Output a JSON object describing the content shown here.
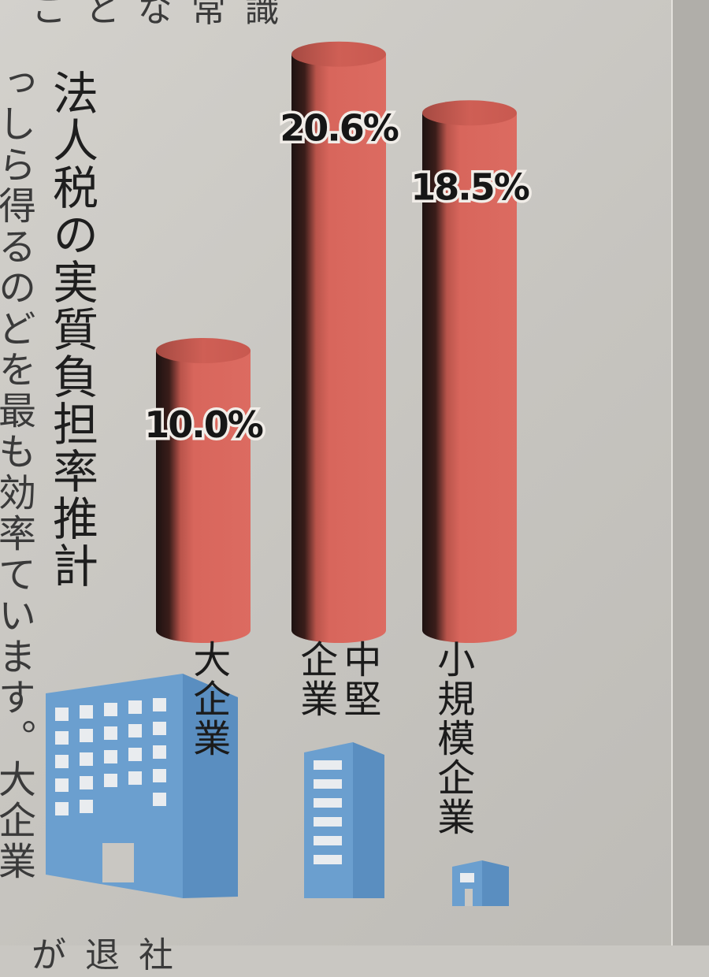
{
  "article": {
    "top_fragment": "ことな常識",
    "left_column": "っしら得るのどを最も効率ています。大企業は、こ",
    "bottom_fragment": "が退社"
  },
  "chart_data": {
    "type": "bar",
    "title": "法人税の実質負担率推計",
    "categories": [
      "大企業",
      "中堅企業",
      "小規模企業"
    ],
    "values": [
      10.0,
      20.6,
      18.5
    ],
    "value_labels": [
      "10.0%",
      "20.6%",
      "18.5%"
    ],
    "unit": "%",
    "ylim": [
      0,
      22
    ],
    "grid": false,
    "legend": "none",
    "colors": {
      "bar": "#d8665c",
      "bar_dark": "#2a1614",
      "bar_top": "#c95a50",
      "building": "#6b9fcf"
    },
    "icons": [
      "large-building-icon",
      "medium-building-icon",
      "small-building-icon"
    ]
  }
}
